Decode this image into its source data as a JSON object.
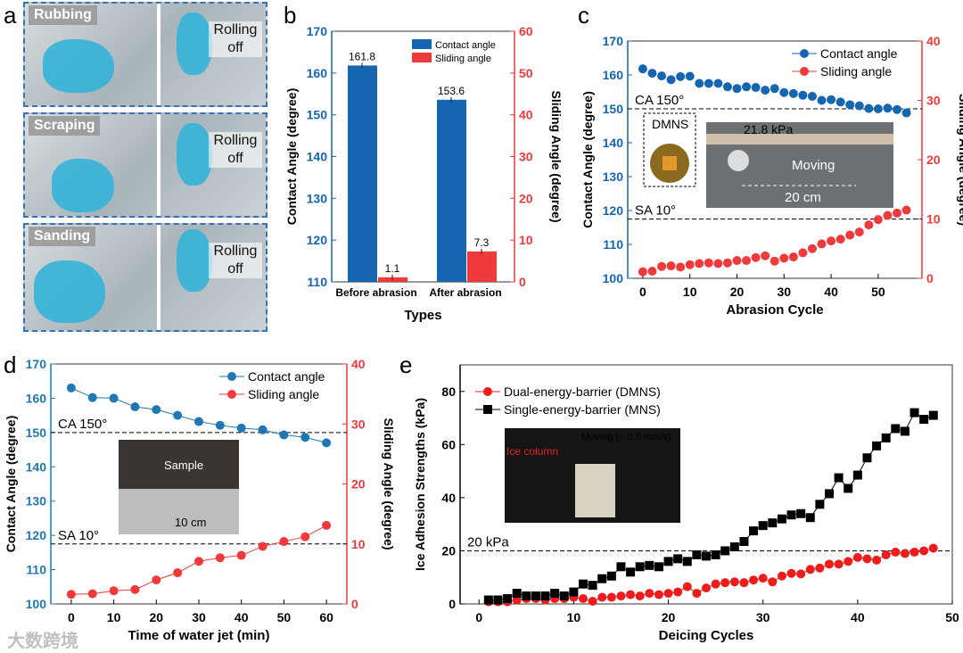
{
  "panel_labels": [
    "a",
    "b",
    "c",
    "d",
    "e"
  ],
  "panel_a": {
    "rows": [
      {
        "method": "Rubbing",
        "result": "Rolling off"
      },
      {
        "method": "Scraping",
        "result": "Rolling off"
      },
      {
        "method": "Sanding",
        "result": "Rolling off"
      }
    ]
  },
  "watermark": "大数跨境",
  "chart_data": [
    {
      "id": "b",
      "type": "bar",
      "xlabel": "Types",
      "ylabel": "Contact Angle (degree)",
      "y2label": "Sliding Angle (degree)",
      "ylim": [
        110,
        170
      ],
      "y2lim": [
        0,
        60
      ],
      "yticks": [
        110,
        120,
        130,
        140,
        150,
        160,
        170
      ],
      "y2ticks": [
        0,
        10,
        20,
        30,
        40,
        50,
        60
      ],
      "categories": [
        "Before abrasion",
        "After abrasion"
      ],
      "series": [
        {
          "name": "Contact angle",
          "axis": "left",
          "color": "#1565b0",
          "values": [
            161.8,
            153.6
          ],
          "labels": [
            "161.8",
            "153.6"
          ]
        },
        {
          "name": "Sliding angle",
          "axis": "right",
          "color": "#f0393b",
          "values": [
            1.1,
            7.3
          ],
          "labels": [
            "1.1",
            "7.3"
          ]
        }
      ],
      "legend": "top-right"
    },
    {
      "id": "c",
      "type": "line",
      "xlabel": "Abrasion Cycle",
      "ylabel": "Contact Angle (degree)",
      "y2label": "Sliding Angle (degree)",
      "xlim": [
        -3.2,
        59.3
      ],
      "xticks": [
        0,
        10,
        20,
        30,
        40,
        50
      ],
      "ylim": [
        100,
        170
      ],
      "yticks": [
        100,
        110,
        120,
        130,
        140,
        150,
        160,
        170
      ],
      "y2lim": [
        0,
        40
      ],
      "y2ticks": [
        0,
        10,
        20,
        30,
        40
      ],
      "x": [
        0,
        2,
        4,
        6,
        8,
        10,
        12,
        14,
        16,
        18,
        20,
        22,
        24,
        26,
        28,
        30,
        32,
        34,
        36,
        38,
        40,
        42,
        44,
        46,
        48,
        50,
        52,
        54,
        56
      ],
      "series": [
        {
          "name": "Contact angle",
          "axis": "left",
          "color": "#1565b0",
          "values": [
            161.8,
            160.5,
            159.7,
            158.6,
            159.5,
            159.6,
            157.5,
            157.5,
            157.5,
            156.5,
            156,
            156.5,
            156.3,
            155.5,
            156,
            154.8,
            154.5,
            154,
            153.7,
            152.5,
            152.7,
            152,
            151.2,
            150.9,
            150.1,
            150,
            150.2,
            149.8,
            148.8
          ]
        },
        {
          "name": "Sliding angle",
          "axis": "right",
          "color": "#f0393b",
          "values": [
            1.1,
            1.2,
            2,
            2.1,
            1.9,
            2.3,
            2.5,
            2.6,
            2.5,
            2.6,
            3,
            3,
            3.5,
            3.8,
            2.9,
            3.4,
            3.6,
            4.3,
            5,
            5.8,
            6.3,
            6.6,
            7.3,
            7.8,
            9,
            9.9,
            10.6,
            11,
            11.5
          ]
        }
      ],
      "ref_lines": [
        {
          "label": "CA 150°",
          "axis": "left",
          "value": 150
        },
        {
          "label": "SA 10°",
          "axis": "right",
          "value": 10
        }
      ],
      "inset": {
        "sample": "DMNS",
        "pressure": "21.8 kPa",
        "motion": "Moving",
        "distance": "20 cm"
      },
      "lines": false,
      "legend": "top-right"
    },
    {
      "id": "d",
      "type": "line",
      "xlabel": "Time of water jet (min)",
      "ylabel": "Contact Angle (degree)",
      "y2label": "Sliding Angle (degree)",
      "xlim": [
        -4.8,
        64.8
      ],
      "xticks": [
        0,
        10,
        20,
        30,
        40,
        50,
        60
      ],
      "ylim": [
        100,
        170
      ],
      "yticks": [
        100,
        110,
        120,
        130,
        140,
        150,
        160,
        170
      ],
      "y2lim": [
        0,
        40
      ],
      "y2ticks": [
        0,
        10,
        20,
        30,
        40
      ],
      "x": [
        0,
        5,
        10,
        15,
        20,
        25,
        30,
        35,
        40,
        45,
        50,
        55,
        60
      ],
      "series": [
        {
          "name": "Contact angle",
          "axis": "left",
          "color": "#1f78b4",
          "values": [
            163,
            160.2,
            160,
            157.5,
            156.7,
            155,
            153.2,
            152.1,
            151.3,
            150.8,
            149.3,
            148.6,
            147
          ]
        },
        {
          "name": "Sliding angle",
          "axis": "right",
          "color": "#f0393b",
          "values": [
            1.6,
            1.7,
            2.2,
            2.4,
            4,
            5.2,
            7.1,
            7.7,
            8.1,
            9.6,
            10.4,
            11.2,
            13.1
          ]
        }
      ],
      "ref_lines": [
        {
          "label": "CA 150°",
          "axis": "left",
          "value": 150
        },
        {
          "label": "SA 10°",
          "axis": "right",
          "value": 10
        }
      ],
      "inset": {
        "sample": "Sample",
        "distance": "10 cm"
      },
      "lines": true,
      "legend": "top-right"
    },
    {
      "id": "e",
      "type": "line",
      "xlabel": "Deicing Cycles",
      "ylabel": "Ice Adhesion Strengths (kPa)",
      "xlim": [
        -2,
        50
      ],
      "xticks": [
        0,
        10,
        20,
        30,
        40,
        50
      ],
      "ylim": [
        0,
        90
      ],
      "yticks": [
        0,
        20,
        40,
        60,
        80
      ],
      "x": [
        1,
        2,
        3,
        4,
        5,
        6,
        7,
        8,
        9,
        10,
        11,
        12,
        13,
        14,
        15,
        16,
        17,
        18,
        19,
        20,
        21,
        22,
        23,
        24,
        25,
        26,
        27,
        28,
        29,
        30,
        31,
        32,
        33,
        34,
        35,
        36,
        37,
        38,
        39,
        40,
        41,
        42,
        43,
        44,
        45,
        46,
        47,
        48
      ],
      "series": [
        {
          "name": "Dual-energy-barrier (DMNS)",
          "axis": "left",
          "color": "#ee1c1c",
          "marker": "circle",
          "values": [
            0.8,
            0.8,
            0.8,
            1.5,
            2,
            2,
            1.5,
            2,
            2,
            2.5,
            2,
            1,
            2.5,
            2.5,
            3,
            3.5,
            3,
            4,
            3.5,
            4,
            4.5,
            6.5,
            4,
            6,
            7.5,
            8,
            8.3,
            8,
            9,
            9.7,
            8.3,
            10.5,
            11.5,
            11.3,
            13,
            13.5,
            15,
            15,
            16,
            17.5,
            17,
            16.5,
            18.5,
            19.5,
            19,
            19.5,
            20,
            21
          ]
        },
        {
          "name": "Single-energy-barrier (MNS)",
          "axis": "left",
          "color": "#000000",
          "marker": "square",
          "values": [
            1.5,
            1.5,
            2,
            4,
            3,
            3,
            3,
            4,
            3,
            4.5,
            7.5,
            7,
            9.5,
            10.5,
            14,
            12,
            14,
            14.5,
            14,
            16,
            17,
            16,
            18.5,
            18,
            18.5,
            20,
            21.5,
            23.5,
            27.5,
            29.5,
            30.5,
            32,
            33.5,
            34,
            32.5,
            37.5,
            41.5,
            47.5,
            43.5,
            48.5,
            55,
            59.5,
            62.5,
            66,
            65,
            72,
            69.5,
            71
          ]
        }
      ],
      "ref_lines": [
        {
          "label": "20 kPa",
          "axis": "left",
          "value": 20
        }
      ],
      "inset": {
        "ice": "Ice column",
        "motion": "Moving (~ 0.5 mm/s)"
      },
      "lines": true,
      "legend": "top-left"
    }
  ]
}
